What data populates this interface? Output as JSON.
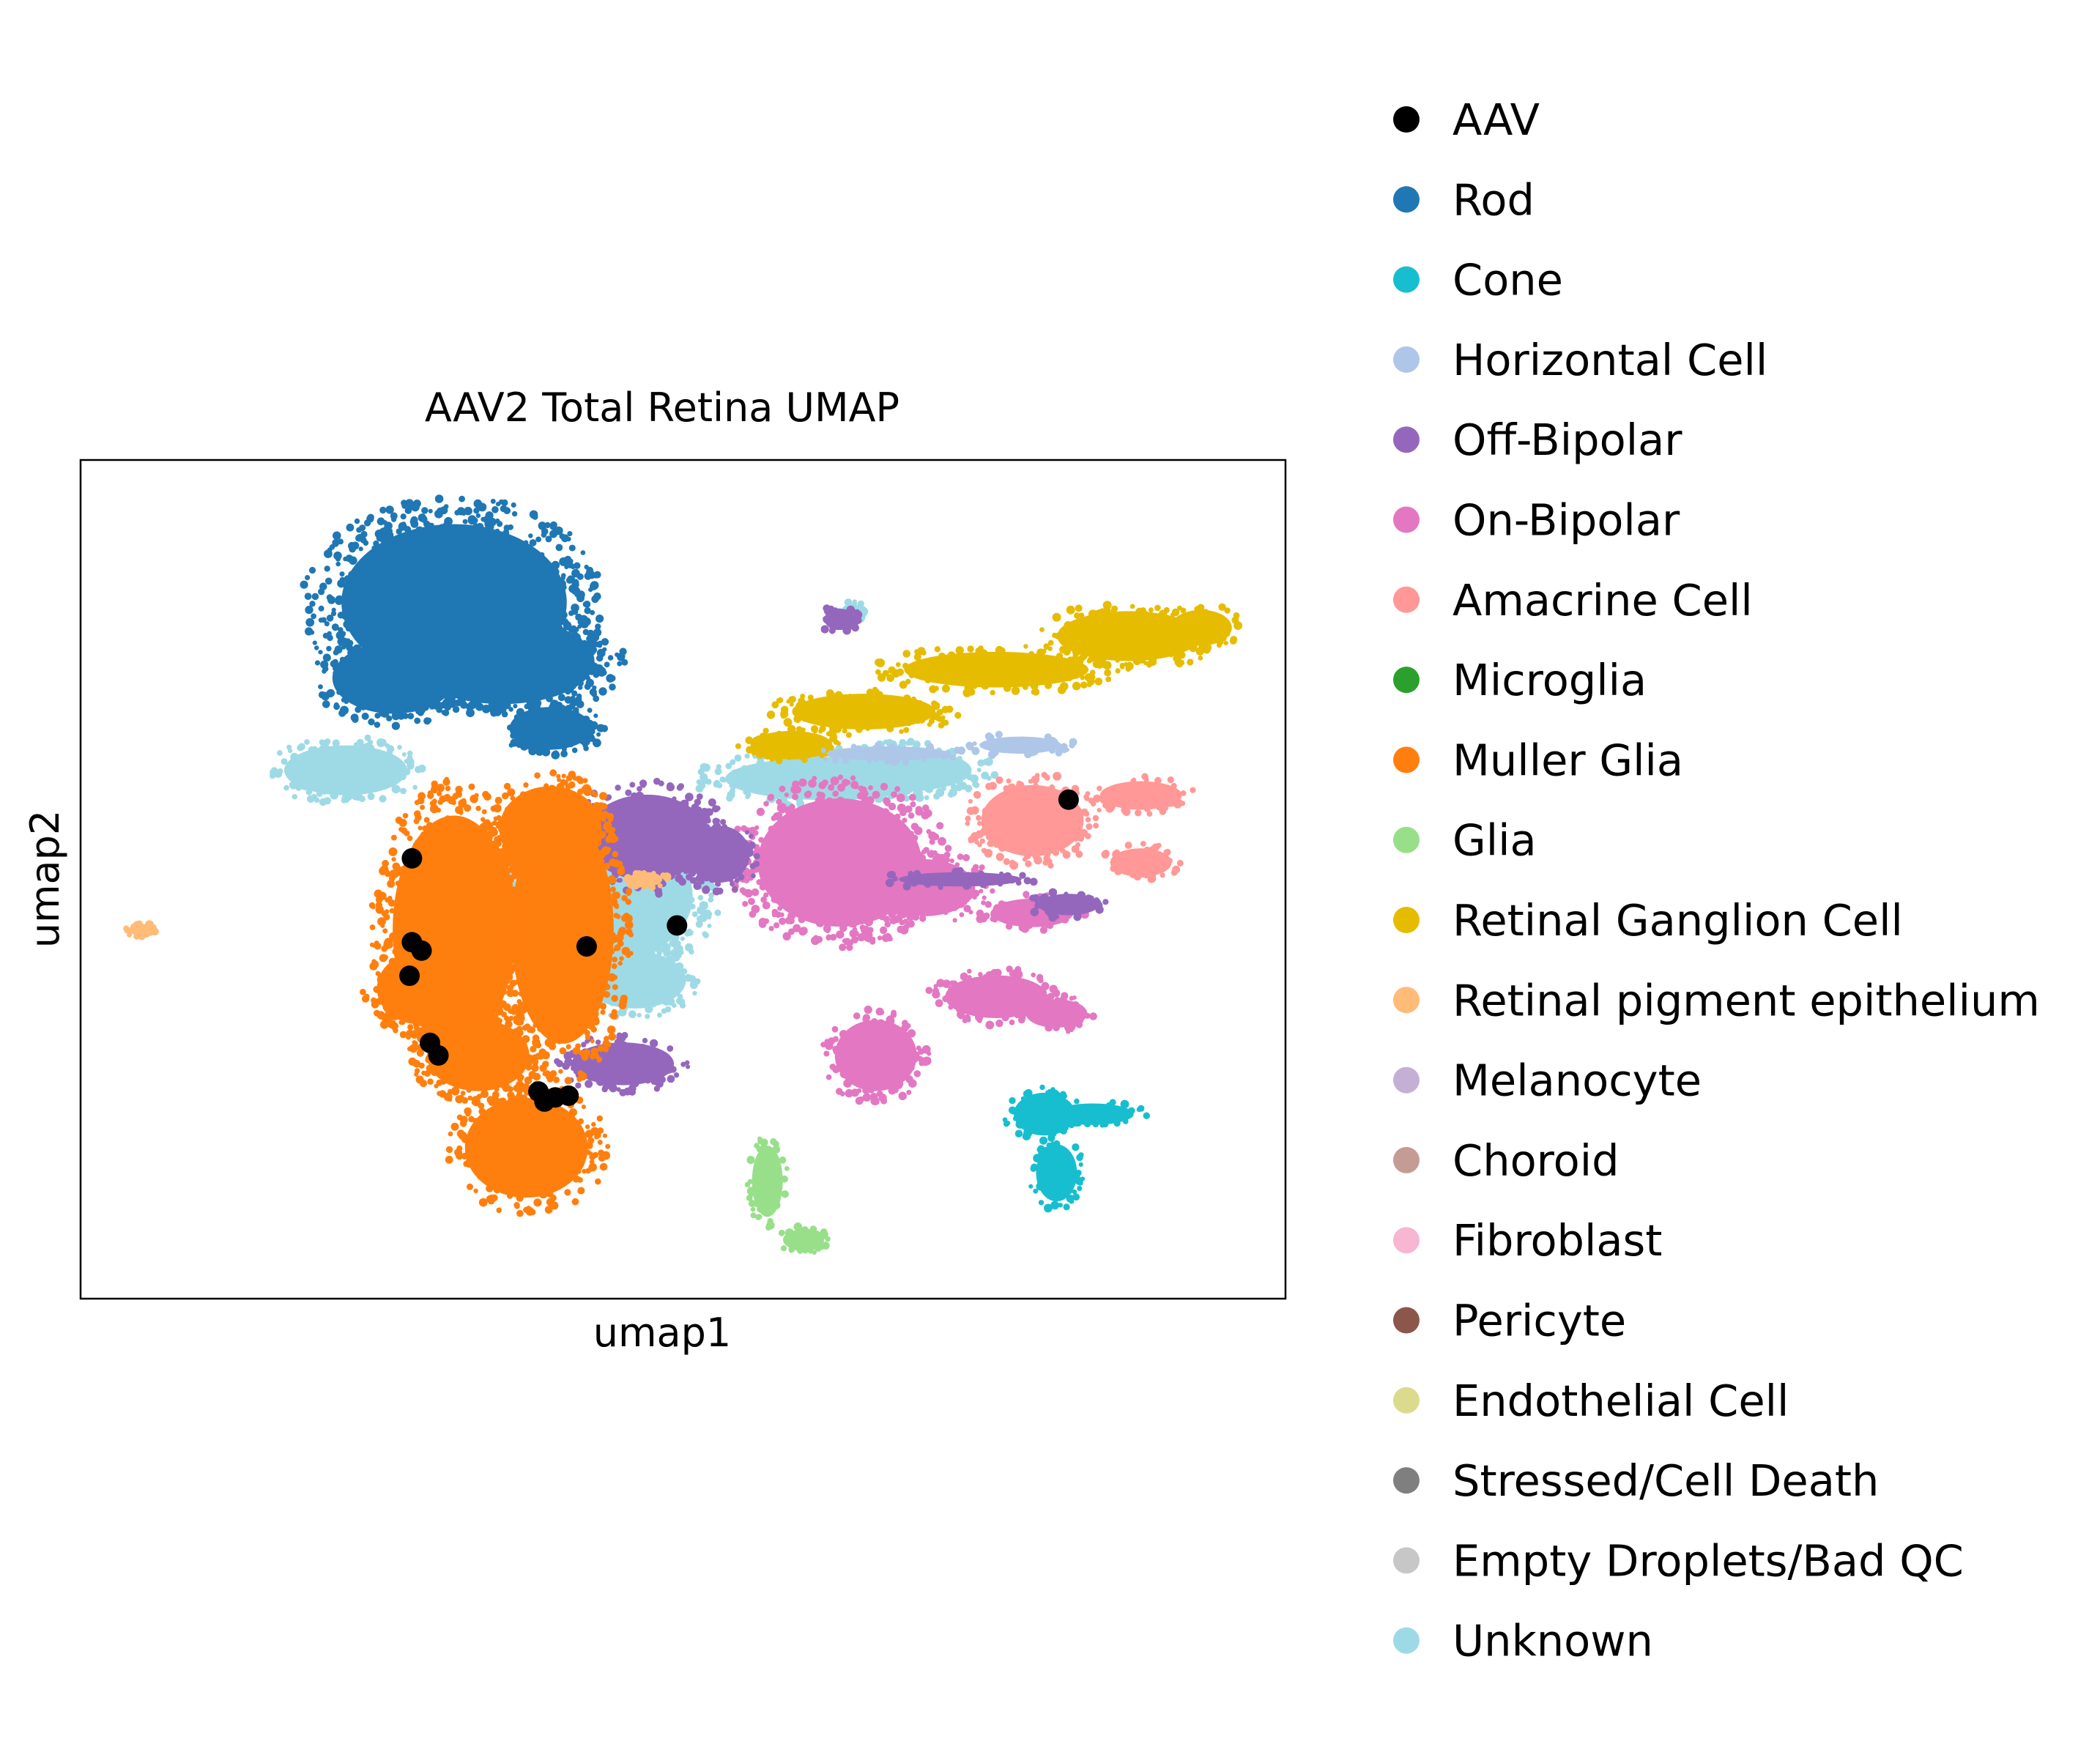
{
  "chart_data": {
    "type": "scatter",
    "title": "AAV2 Total Retina UMAP",
    "xlabel": "umap1",
    "ylabel": "umap2",
    "xlim": [
      0,
      100
    ],
    "ylim": [
      0,
      100
    ],
    "grid": false,
    "legend_position": "right",
    "legend": [
      {
        "label": "AAV",
        "color": "#000000"
      },
      {
        "label": "Rod",
        "color": "#1f77b4"
      },
      {
        "label": "Cone",
        "color": "#17becf"
      },
      {
        "label": "Horizontal Cell",
        "color": "#aec7e8"
      },
      {
        "label": "Off-Bipolar",
        "color": "#9467bd"
      },
      {
        "label": "On-Bipolar",
        "color": "#e377c2"
      },
      {
        "label": "Amacrine Cell",
        "color": "#ff9896"
      },
      {
        "label": "Microglia",
        "color": "#2ca02c"
      },
      {
        "label": "Muller Glia",
        "color": "#ff7f0e"
      },
      {
        "label": "Glia",
        "color": "#98df8a"
      },
      {
        "label": "Retinal Ganglion Cell",
        "color": "#e6bc00"
      },
      {
        "label": "Retinal pigment epithelium",
        "color": "#ffbb78"
      },
      {
        "label": "Melanocyte",
        "color": "#c5b0d5"
      },
      {
        "label": "Choroid",
        "color": "#c49c94"
      },
      {
        "label": "Fibroblast",
        "color": "#f7b6d2"
      },
      {
        "label": "Pericyte",
        "color": "#8c564b"
      },
      {
        "label": "Endothelial Cell",
        "color": "#dbdb8d"
      },
      {
        "label": "Stressed/Cell Death",
        "color": "#7f7f7f"
      },
      {
        "label": "Empty Droplets/Bad QC",
        "color": "#c7c7c7"
      },
      {
        "label": "Unknown",
        "color": "#9edae5"
      }
    ],
    "clusters": [
      {
        "series": "Unknown",
        "color": "#9edae5",
        "blobs": [
          [
            22,
            63,
            6,
            3.5
          ],
          [
            44,
            48,
            8,
            9
          ],
          [
            46,
            38,
            5,
            4
          ],
          [
            62,
            62,
            10,
            3
          ],
          [
            68,
            63,
            7,
            3
          ],
          [
            64,
            82,
            1,
            1
          ]
        ]
      },
      {
        "series": "Rod",
        "color": "#1f77b4",
        "blobs": [
          [
            31,
            83,
            11,
            11
          ],
          [
            26,
            74,
            6,
            5
          ],
          [
            35,
            76,
            9,
            6
          ],
          [
            39,
            68,
            4,
            3
          ]
        ]
      },
      {
        "series": "Retinal Ganglion Cell",
        "color": "#e6bc00",
        "blobs": [
          [
            65,
            70,
            7,
            2.5
          ],
          [
            76,
            75,
            9,
            2.5
          ],
          [
            87,
            79,
            7,
            3.5
          ],
          [
            93,
            80,
            3,
            2.5
          ],
          [
            59,
            66,
            4,
            2
          ]
        ]
      },
      {
        "series": "Horizontal Cell",
        "color": "#aec7e8",
        "blobs": [
          [
            67,
            65,
            6,
            1
          ],
          [
            78,
            66,
            4,
            1.2
          ]
        ]
      },
      {
        "series": "Amacrine Cell",
        "color": "#ff9896",
        "blobs": [
          [
            79,
            57,
            5,
            5
          ],
          [
            88,
            60,
            4,
            2
          ],
          [
            88,
            52,
            3,
            2
          ]
        ]
      },
      {
        "series": "On-Bipolar",
        "color": "#e377c2",
        "blobs": [
          [
            63,
            52,
            8,
            9
          ],
          [
            70,
            49,
            5,
            4
          ],
          [
            66,
            29,
            4,
            5
          ],
          [
            76,
            36,
            5,
            3
          ],
          [
            81,
            34,
            3,
            2
          ],
          [
            79,
            46,
            4,
            2
          ]
        ]
      },
      {
        "series": "Off-Bipolar",
        "color": "#9467bd",
        "blobs": [
          [
            47,
            55,
            6,
            6
          ],
          [
            53,
            53,
            3,
            4
          ],
          [
            45,
            28,
            5,
            3
          ],
          [
            73,
            50,
            6,
            1
          ],
          [
            82,
            47,
            3,
            1.5
          ],
          [
            63,
            81,
            1.5,
            1.5
          ]
        ]
      },
      {
        "series": "Muller Glia",
        "color": "#ff7f0e",
        "blobs": [
          [
            31,
            44,
            6,
            16
          ],
          [
            40,
            44,
            5,
            16
          ],
          [
            28,
            37,
            4,
            5
          ],
          [
            37,
            18,
            6,
            7
          ],
          [
            33,
            29,
            5,
            5
          ],
          [
            39,
            56,
            5,
            6
          ]
        ]
      },
      {
        "series": "Cone",
        "color": "#17becf",
        "blobs": [
          [
            80,
            22,
            3,
            3
          ],
          [
            84,
            22,
            4,
            1.5
          ],
          [
            81,
            15,
            2,
            4
          ]
        ]
      },
      {
        "series": "Glia",
        "color": "#98df8a",
        "blobs": [
          [
            57,
            14,
            1.5,
            5
          ],
          [
            60,
            7,
            2,
            1.5
          ]
        ]
      },
      {
        "series": "Retinal pigment epithelium",
        "color": "#ffbb78",
        "blobs": [
          [
            5,
            44,
            1.2,
            0.8
          ],
          [
            47,
            50,
            1.5,
            1
          ]
        ]
      }
    ],
    "aav_points": [
      [
        27.5,
        52.5
      ],
      [
        27.5,
        42.5
      ],
      [
        28.3,
        41.5
      ],
      [
        27.3,
        38.5
      ],
      [
        29,
        30.5
      ],
      [
        29.7,
        29
      ],
      [
        38,
        24.7
      ],
      [
        38.5,
        23.5
      ],
      [
        39.4,
        24
      ],
      [
        40.5,
        24.2
      ],
      [
        42,
        42
      ],
      [
        49.5,
        44.5
      ],
      [
        82,
        59.5
      ]
    ]
  }
}
